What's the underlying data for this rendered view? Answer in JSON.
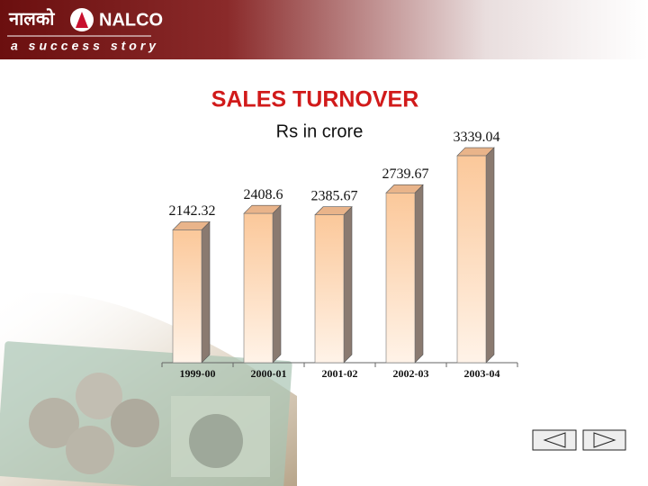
{
  "header": {
    "logo_text": "नालको",
    "brand": "NALCO",
    "tagline": "a success story"
  },
  "chart_data": {
    "type": "bar",
    "title": "SALES TURNOVER",
    "subtitle": "Rs in crore",
    "categories": [
      "1999-00",
      "2000-01",
      "2001-02",
      "2002-03",
      "2003-04"
    ],
    "values": [
      2142.32,
      2408.6,
      2385.67,
      2739.67,
      3339.04
    ],
    "color": "#fbc89a",
    "ylim": [
      0,
      3500
    ],
    "grid": false
  }
}
